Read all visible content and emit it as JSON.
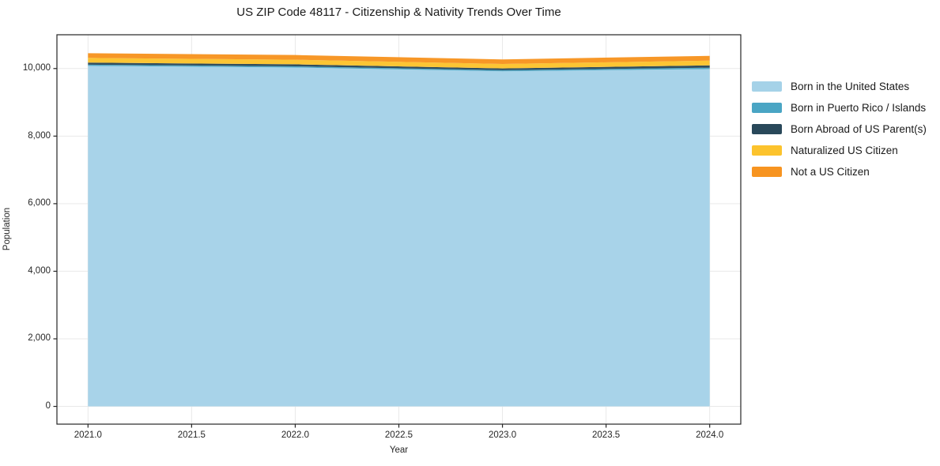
{
  "figure": {
    "title": "US ZIP Code 48117 - Citizenship & Nativity Trends Over Time",
    "xlabel": "Year",
    "ylabel": "Population"
  },
  "colors": {
    "grid": "#e9e9e9",
    "spine": "#262626",
    "text": "#1a1a1a"
  },
  "chart_data": {
    "type": "area",
    "stacked": true,
    "title": "US ZIP Code 48117 - Citizenship & Nativity Trends Over Time",
    "xlabel": "Year",
    "ylabel": "Population",
    "grid": true,
    "legend_position": "right-outside",
    "x": [
      2021,
      2022,
      2023,
      2024
    ],
    "xlim": [
      2020.85,
      2024.15
    ],
    "ylim": [
      -525,
      11000
    ],
    "x_tick_values": [
      2021.0,
      2021.5,
      2022.0,
      2022.5,
      2023.0,
      2023.5,
      2024.0
    ],
    "x_tick_labels": [
      "2021.0",
      "2021.5",
      "2022.0",
      "2022.5",
      "2023.0",
      "2023.5",
      "2024.0"
    ],
    "y_tick_values": [
      0,
      2000,
      4000,
      6000,
      8000,
      10000
    ],
    "y_tick_labels": [
      "0",
      "2,000",
      "4,000",
      "6,000",
      "8,000",
      "10,000"
    ],
    "series": [
      {
        "name": "Born in the United States",
        "color": "#a5d2e8",
        "values": [
          10080,
          10030,
          9920,
          9985
        ]
      },
      {
        "name": "Born in Puerto Rico / Islands",
        "color": "#4aa5c4",
        "values": [
          35,
          35,
          30,
          40
        ]
      },
      {
        "name": "Born Abroad of US Parent(s)",
        "color": "#29485a",
        "values": [
          60,
          60,
          55,
          70
        ]
      },
      {
        "name": "Naturalized US Citizen",
        "color": "#fcc32d",
        "values": [
          140,
          135,
          130,
          140
        ]
      },
      {
        "name": "Not a US Citizen",
        "color": "#f79420",
        "values": [
          140,
          140,
          135,
          140
        ]
      }
    ]
  }
}
